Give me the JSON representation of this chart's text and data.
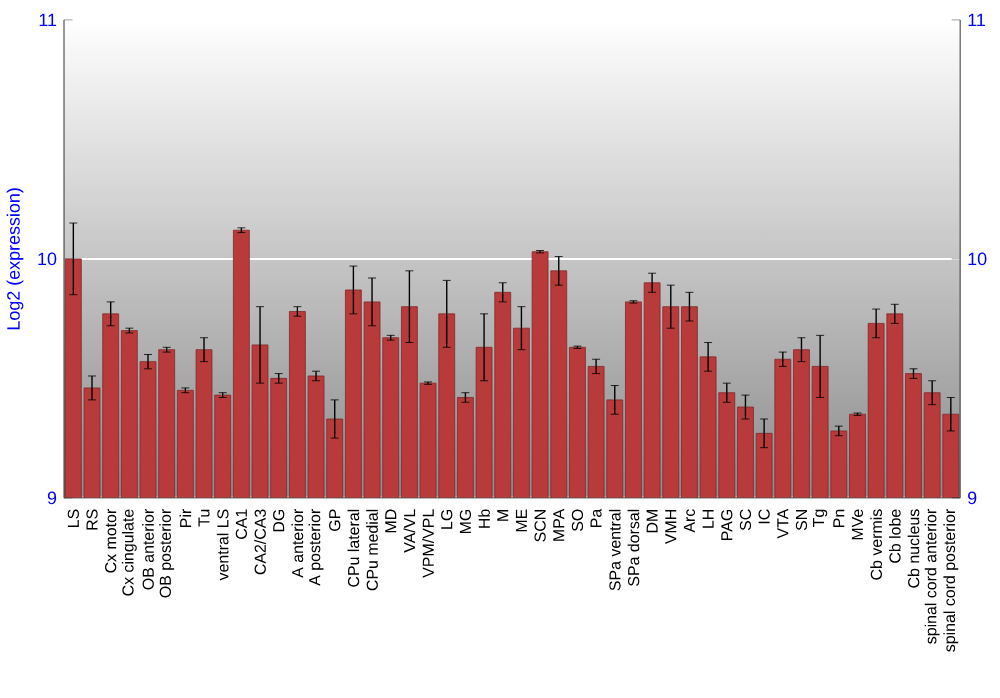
{
  "chart_data": {
    "type": "bar",
    "ylabel": "Log2 (expression)",
    "categories": [
      "LS",
      "RS",
      "Cx motor",
      "Cx cingulate",
      "OB anterior",
      "OB posterior",
      "Pir",
      "Tu",
      "ventral LS",
      "CA1",
      "CA2/CA3",
      "DG",
      "A anterior",
      "A posterior",
      "GP",
      "CPu lateral",
      "CPu medial",
      "MD",
      "VA/VL",
      "VPM/VPL",
      "LG",
      "MG",
      "Hb",
      "M",
      "ME",
      "SCN",
      "MPA",
      "SO",
      "Pa",
      "SPa ventral",
      "SPa dorsal",
      "DM",
      "VMH",
      "Arc",
      "LH",
      "PAG",
      "SC",
      "IC",
      "VTA",
      "SN",
      "Tg",
      "Pn",
      "MVe",
      "Cb vermis",
      "Cb lobe",
      "Cb nucleus",
      "spinal cord anterior",
      "spinal cord posterior"
    ],
    "values": [
      10.0,
      9.46,
      9.77,
      9.7,
      9.57,
      9.62,
      9.45,
      9.62,
      9.43,
      10.12,
      9.64,
      9.5,
      9.78,
      9.51,
      9.33,
      9.87,
      9.82,
      9.67,
      9.8,
      9.48,
      9.77,
      9.42,
      9.63,
      9.86,
      9.71,
      10.03,
      9.95,
      9.63,
      9.55,
      9.41,
      9.82,
      9.9,
      9.8,
      9.8,
      9.59,
      9.44,
      9.38,
      9.27,
      9.58,
      9.62,
      9.55,
      9.28,
      9.35,
      9.73,
      9.77,
      9.52,
      9.44,
      9.35
    ],
    "errors": [
      0.15,
      0.05,
      0.05,
      0.01,
      0.03,
      0.01,
      0.01,
      0.05,
      0.01,
      0.01,
      0.16,
      0.02,
      0.02,
      0.02,
      0.08,
      0.1,
      0.1,
      0.01,
      0.15,
      0.005,
      0.14,
      0.02,
      0.14,
      0.04,
      0.09,
      0.005,
      0.06,
      0.005,
      0.03,
      0.06,
      0.005,
      0.04,
      0.09,
      0.06,
      0.06,
      0.04,
      0.05,
      0.06,
      0.03,
      0.05,
      0.13,
      0.02,
      0.005,
      0.06,
      0.04,
      0.02,
      0.05,
      0.07
    ],
    "color": "#b83a3a",
    "ylim": [
      9,
      11
    ],
    "yticks": [
      9,
      10,
      11
    ],
    "y2lim": [
      9,
      11
    ],
    "y2ticks": [
      9,
      10,
      11
    ],
    "grid": "y"
  }
}
